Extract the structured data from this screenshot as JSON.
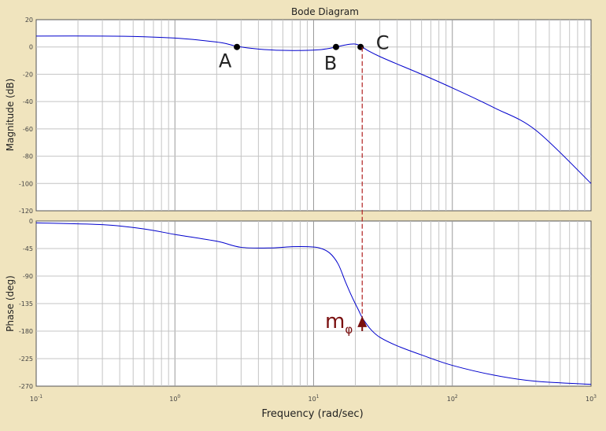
{
  "chart_data": {
    "type": "line",
    "title": "Bode Diagram",
    "xlabel": "Frequency  (rad/sec)",
    "x_scale": "log",
    "xlim": [
      0.1,
      1000
    ],
    "x_ticks": [
      {
        "value": 0.1,
        "base": "10",
        "exp": "-1"
      },
      {
        "value": 1,
        "base": "10",
        "exp": "0"
      },
      {
        "value": 10,
        "base": "10",
        "exp": "1"
      },
      {
        "value": 100,
        "base": "10",
        "exp": "2"
      },
      {
        "value": 1000,
        "base": "10",
        "exp": "3"
      }
    ],
    "grid": true,
    "line_color": "#0000cc",
    "marker_line_color": "#b22222",
    "annotation_color": "#7a1010",
    "magnitude": {
      "ylabel": "Magnitude (dB)",
      "ylim": [
        -120,
        20
      ],
      "yticks": [
        20,
        0,
        -20,
        -40,
        -60,
        -80,
        -100,
        -120
      ],
      "x": [
        0.1,
        0.3,
        0.6,
        1,
        1.5,
        2.2,
        2.8,
        4,
        6,
        9,
        11,
        13,
        14.5,
        17,
        19.5,
        21,
        22.4,
        25,
        30,
        40,
        60,
        100,
        200,
        400,
        1000
      ],
      "y": [
        8,
        8,
        7.5,
        6.5,
        5,
        3,
        0.5,
        -1.5,
        -2.5,
        -2.5,
        -2,
        -1,
        0,
        1.5,
        2.2,
        1.5,
        0,
        -3,
        -7,
        -12.5,
        -20,
        -30,
        -44.5,
        -61,
        -100
      ]
    },
    "phase": {
      "ylabel": "Phase (deg)",
      "ylim": [
        -270,
        0
      ],
      "yticks": [
        0,
        -45,
        -90,
        -135,
        -180,
        -225,
        -270
      ],
      "x": [
        0.1,
        0.3,
        0.6,
        1,
        2,
        3,
        5,
        7,
        9,
        11,
        13,
        15,
        17,
        19,
        21,
        22.4,
        24,
        26,
        30,
        40,
        60,
        100,
        200,
        400,
        1000
      ],
      "y": [
        -3,
        -6,
        -13,
        -22,
        -33,
        -43,
        -44,
        -42,
        -42,
        -44,
        -52,
        -70,
        -100,
        -125,
        -145,
        -158,
        -168,
        -178,
        -190,
        -204,
        -219,
        -236,
        -252,
        -262,
        -267
      ]
    },
    "points": [
      {
        "label": "A",
        "x": 2.8,
        "y": 0
      },
      {
        "label": "B",
        "x": 14.5,
        "y": 0
      },
      {
        "label": "C",
        "x": 21.8,
        "y": 0
      }
    ],
    "crossover_x": 22.4,
    "phase_margin_label": {
      "base": "m",
      "sub": "φ"
    }
  }
}
